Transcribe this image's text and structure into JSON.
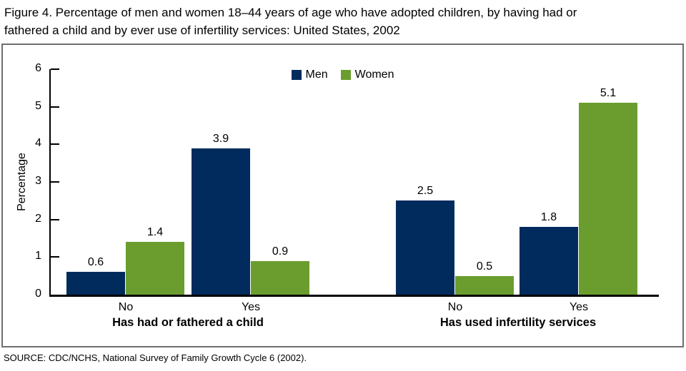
{
  "title": {
    "line1": "Figure 4. Percentage of men and women 18–44 years of age who have adopted children, by having had or",
    "line2": "fathered a child and by ever use of infertility services: United States, 2002"
  },
  "source": "SOURCE: CDC/NCHS, National Survey of Family Growth Cycle 6 (2002).",
  "chart_data": {
    "type": "bar",
    "ylabel": "Percentage",
    "ylim": [
      0,
      6
    ],
    "yticks": [
      0,
      1,
      2,
      3,
      4,
      5,
      6
    ],
    "grid": false,
    "legend_position": "top-center",
    "value_labels": true,
    "legend": [
      {
        "name": "Men",
        "color": "#002b5c"
      },
      {
        "name": "Women",
        "color": "#6a9d2e"
      }
    ],
    "panels": [
      {
        "label": "Has had or fathered a child",
        "categories": [
          "No",
          "Yes"
        ],
        "series": [
          {
            "name": "Men",
            "values": [
              0.6,
              3.9
            ]
          },
          {
            "name": "Women",
            "values": [
              1.4,
              0.9
            ]
          }
        ]
      },
      {
        "label": "Has used infertility services",
        "categories": [
          "No",
          "Yes"
        ],
        "series": [
          {
            "name": "Men",
            "values": [
              2.5,
              1.8
            ]
          },
          {
            "name": "Women",
            "values": [
              0.5,
              5.1
            ]
          }
        ]
      }
    ]
  }
}
